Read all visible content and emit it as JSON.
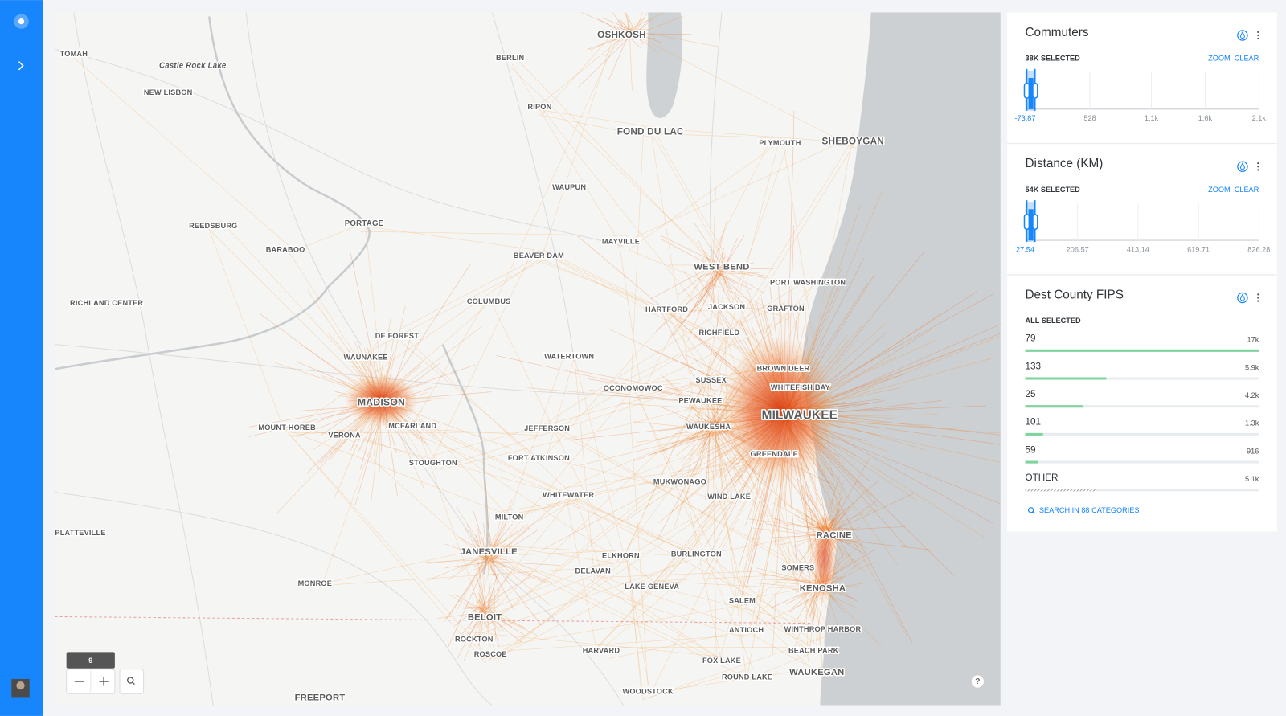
{
  "map": {
    "labels": [
      "OSHKOSH",
      "BERLIN",
      "TOMAH",
      "Castle Rock Lake",
      "NEW LISBON",
      "RIPON",
      "FOND DU LAC",
      "PLYMOUTH",
      "SHEBOYGAN",
      "WAUPUN",
      "REEDSBURG",
      "PORTAGE",
      "BARABOO",
      "MAYVILLE",
      "BEAVER DAM",
      "WEST BEND",
      "PORT WASHINGTON",
      "RICHLAND CENTER",
      "COLUMBUS",
      "HARTFORD",
      "JACKSON",
      "GRAFTON",
      "RICHFIELD",
      "DE FOREST",
      "WAUNAKEE",
      "WATERTOWN",
      "BROWN DEER",
      "SUSSEX",
      "OCONOMOWOC",
      "WHITEFISH BAY",
      "MADISON",
      "PEWAUKEE",
      "MILWAUKEE",
      "MOUNT HOREB",
      "MCFARLAND",
      "WAUKESHA",
      "JEFFERSON",
      "VERONA",
      "GREENDALE",
      "FORT ATKINSON",
      "STOUGHTON",
      "MUKWONAGO",
      "WHITEWATER",
      "WIND LAKE",
      "MILTON",
      "PLATTEVILLE",
      "RACINE",
      "JANESVILLE",
      "ELKHORN",
      "BURLINGTON",
      "DELAVAN",
      "SOMERS",
      "MONROE",
      "LAKE GENEVA",
      "KENOSHA",
      "SALEM",
      "BELOIT",
      "WINTHROP HARBOR",
      "ANTIOCH",
      "ROCKTON",
      "HARVARD",
      "BEACH PARK",
      "ROSCOE",
      "FOX LAKE",
      "WAUKEGAN",
      "ROUND LAKE",
      "WOODSTOCK",
      "FREEPORT"
    ],
    "zoom_level": 9,
    "help": "?"
  },
  "widgets": [
    {
      "type": "histogram",
      "title": "Commuters",
      "selection": "38K SELECTED",
      "actions": [
        "ZOOM",
        "CLEAR"
      ],
      "xlim": [
        -73.87,
        2100
      ],
      "xticks": [
        -73.87,
        528,
        {
          "value": 1100,
          "label": "1.1k"
        },
        {
          "value": 1600,
          "label": "1.6k"
        },
        {
          "value": 2100,
          "label": "2.1k"
        }
      ]
    },
    {
      "type": "histogram",
      "title": "Distance (KM)",
      "selection": "54K SELECTED",
      "actions": [
        "ZOOM",
        "CLEAR"
      ],
      "xlim": [
        27.54,
        826.28
      ],
      "xticks": [
        27.54,
        206.57,
        413.14,
        619.71,
        826.28
      ]
    },
    {
      "type": "category",
      "title": "Dest County FIPS",
      "selection": "ALL SELECTED",
      "categories": [
        "79",
        "133",
        "25",
        "101",
        "59",
        "OTHER"
      ],
      "values": [
        17000,
        5900,
        4200,
        1300,
        916,
        5100
      ],
      "value_labels": [
        "17k",
        "5.9k",
        "4.2k",
        "1.3k",
        "916",
        "5.1k"
      ],
      "search": "SEARCH IN 88 CATEGORIES"
    }
  ]
}
